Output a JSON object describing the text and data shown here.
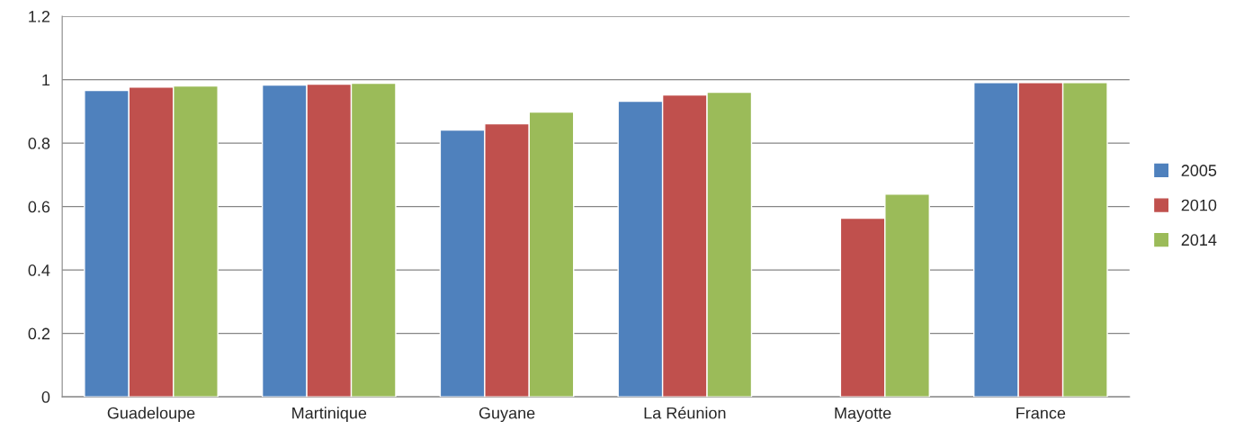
{
  "chart_data": {
    "type": "bar",
    "categories": [
      "Guadeloupe",
      "Martinique",
      "Guyane",
      "La Réunion",
      "Mayotte",
      "France"
    ],
    "series": [
      {
        "name": "2005",
        "color": "#4f81bd",
        "values": [
          0.966,
          0.983,
          0.841,
          0.932,
          null,
          0.991
        ]
      },
      {
        "name": "2010",
        "color": "#c0504d",
        "values": [
          0.977,
          0.986,
          0.861,
          0.952,
          0.563,
          0.991
        ]
      },
      {
        "name": "2014",
        "color": "#9bbb59",
        "values": [
          0.98,
          0.989,
          0.898,
          0.96,
          0.639,
          0.991
        ]
      }
    ],
    "ylim": [
      0,
      1.2
    ],
    "yticks": [
      0,
      0.2,
      0.4,
      0.6,
      0.8,
      1,
      1.2
    ],
    "grid": "y",
    "legend": "right"
  }
}
